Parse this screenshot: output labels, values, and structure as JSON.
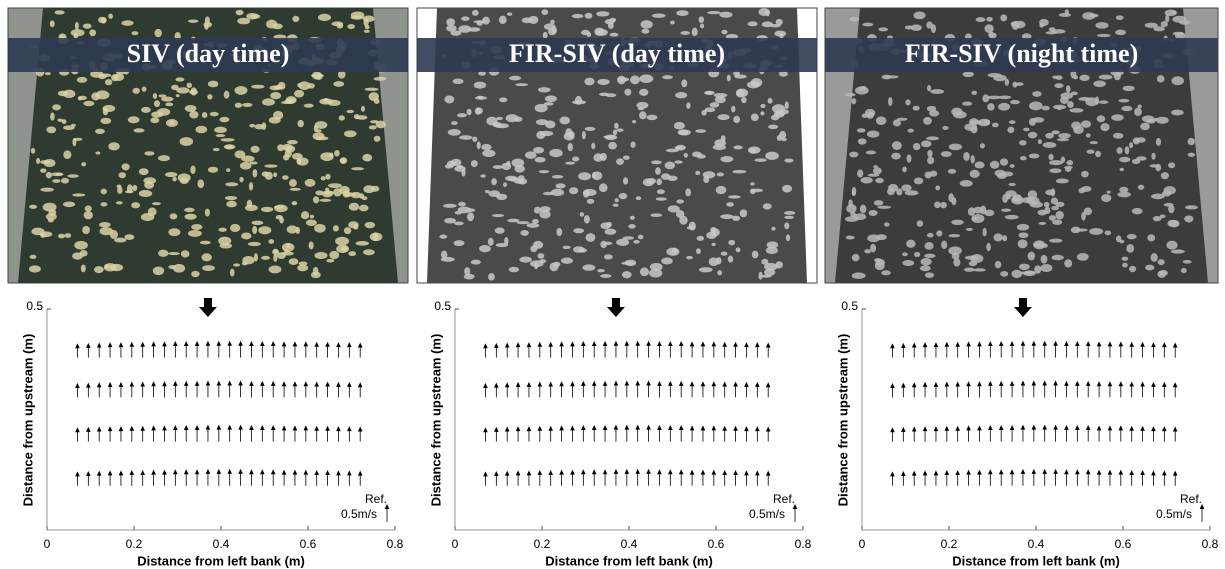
{
  "chart_data": [
    {
      "type": "quiver",
      "title": "SIV (day time)",
      "xlabel": "Distance from left bank (m)",
      "ylabel": "Distance from upstream (m)",
      "xlim": [
        0,
        0.8
      ],
      "ylim": [
        0,
        0.5
      ],
      "xticks": [
        0,
        0.2,
        0.4,
        0.6,
        0.8
      ],
      "yticks": [
        0.5
      ],
      "x": [
        0.07,
        0.095,
        0.12,
        0.145,
        0.17,
        0.195,
        0.22,
        0.245,
        0.27,
        0.295,
        0.32,
        0.345,
        0.37,
        0.395,
        0.42,
        0.445,
        0.47,
        0.495,
        0.52,
        0.545,
        0.57,
        0.595,
        0.62,
        0.645,
        0.67,
        0.695,
        0.72
      ],
      "rows": [
        {
          "y": 0.39,
          "values": [
            0.4,
            0.41,
            0.42,
            0.43,
            0.43,
            0.44,
            0.44,
            0.45,
            0.45,
            0.46,
            0.46,
            0.46,
            0.47,
            0.47,
            0.47,
            0.47,
            0.46,
            0.46,
            0.46,
            0.45,
            0.45,
            0.45,
            0.44,
            0.44,
            0.43,
            0.43,
            0.42
          ]
        },
        {
          "y": 0.3,
          "values": [
            0.4,
            0.41,
            0.42,
            0.43,
            0.43,
            0.44,
            0.44,
            0.45,
            0.45,
            0.46,
            0.46,
            0.46,
            0.47,
            0.47,
            0.47,
            0.47,
            0.46,
            0.46,
            0.46,
            0.45,
            0.45,
            0.45,
            0.44,
            0.44,
            0.43,
            0.43,
            0.42
          ]
        },
        {
          "y": 0.2,
          "values": [
            0.4,
            0.41,
            0.42,
            0.43,
            0.43,
            0.44,
            0.44,
            0.45,
            0.45,
            0.46,
            0.46,
            0.46,
            0.47,
            0.47,
            0.47,
            0.47,
            0.46,
            0.46,
            0.46,
            0.45,
            0.45,
            0.45,
            0.44,
            0.44,
            0.43,
            0.43,
            0.42
          ]
        },
        {
          "y": 0.1,
          "values": [
            0.4,
            0.41,
            0.42,
            0.43,
            0.43,
            0.44,
            0.44,
            0.45,
            0.45,
            0.46,
            0.46,
            0.46,
            0.47,
            0.47,
            0.47,
            0.47,
            0.46,
            0.46,
            0.46,
            0.45,
            0.45,
            0.45,
            0.44,
            0.44,
            0.43,
            0.43,
            0.42
          ]
        }
      ],
      "ref_label": "Ref.",
      "ref_value": 0.5,
      "ref_value_label": "0.5m/s"
    },
    {
      "type": "quiver",
      "title": "FIR-SIV (day time)",
      "xlabel": "Distance from left bank (m)",
      "ylabel": "Distance from upstream (m)",
      "xlim": [
        0,
        0.8
      ],
      "ylim": [
        0,
        0.5
      ],
      "xticks": [
        0,
        0.2,
        0.4,
        0.6,
        0.8
      ],
      "yticks": [
        0.5
      ],
      "x": [
        0.07,
        0.095,
        0.12,
        0.145,
        0.17,
        0.195,
        0.22,
        0.245,
        0.27,
        0.295,
        0.32,
        0.345,
        0.37,
        0.395,
        0.42,
        0.445,
        0.47,
        0.495,
        0.52,
        0.545,
        0.57,
        0.595,
        0.62,
        0.645,
        0.67,
        0.695,
        0.72
      ],
      "rows": [
        {
          "y": 0.39,
          "values": [
            0.4,
            0.41,
            0.42,
            0.43,
            0.43,
            0.44,
            0.44,
            0.45,
            0.45,
            0.46,
            0.46,
            0.46,
            0.47,
            0.47,
            0.47,
            0.47,
            0.46,
            0.46,
            0.46,
            0.45,
            0.45,
            0.45,
            0.44,
            0.44,
            0.43,
            0.43,
            0.42
          ]
        },
        {
          "y": 0.3,
          "values": [
            0.4,
            0.41,
            0.42,
            0.43,
            0.43,
            0.44,
            0.44,
            0.45,
            0.45,
            0.46,
            0.46,
            0.46,
            0.47,
            0.47,
            0.47,
            0.47,
            0.46,
            0.46,
            0.46,
            0.45,
            0.45,
            0.45,
            0.44,
            0.44,
            0.43,
            0.43,
            0.42
          ]
        },
        {
          "y": 0.2,
          "values": [
            0.4,
            0.41,
            0.42,
            0.43,
            0.43,
            0.44,
            0.44,
            0.45,
            0.45,
            0.46,
            0.46,
            0.46,
            0.47,
            0.47,
            0.47,
            0.47,
            0.46,
            0.46,
            0.46,
            0.45,
            0.45,
            0.45,
            0.44,
            0.44,
            0.43,
            0.43,
            0.42
          ]
        },
        {
          "y": 0.1,
          "values": [
            0.4,
            0.41,
            0.42,
            0.43,
            0.43,
            0.44,
            0.44,
            0.45,
            0.45,
            0.46,
            0.46,
            0.46,
            0.47,
            0.47,
            0.47,
            0.47,
            0.46,
            0.46,
            0.46,
            0.45,
            0.45,
            0.45,
            0.44,
            0.44,
            0.43,
            0.43,
            0.42
          ]
        }
      ],
      "ref_label": "Ref.",
      "ref_value": 0.5,
      "ref_value_label": "0.5m/s"
    },
    {
      "type": "quiver",
      "title": "FIR-SIV (night time)",
      "xlabel": "Distance from left bank (m)",
      "ylabel": "Distance from upstream (m)",
      "xlim": [
        0,
        0.8
      ],
      "ylim": [
        0,
        0.5
      ],
      "xticks": [
        0,
        0.2,
        0.4,
        0.6,
        0.8
      ],
      "yticks": [
        0.5
      ],
      "x": [
        0.07,
        0.095,
        0.12,
        0.145,
        0.17,
        0.195,
        0.22,
        0.245,
        0.27,
        0.295,
        0.32,
        0.345,
        0.37,
        0.395,
        0.42,
        0.445,
        0.47,
        0.495,
        0.52,
        0.545,
        0.57,
        0.595,
        0.62,
        0.645,
        0.67,
        0.695,
        0.72
      ],
      "rows": [
        {
          "y": 0.39,
          "values": [
            0.4,
            0.41,
            0.42,
            0.43,
            0.43,
            0.44,
            0.44,
            0.45,
            0.45,
            0.46,
            0.46,
            0.46,
            0.47,
            0.47,
            0.47,
            0.47,
            0.46,
            0.46,
            0.46,
            0.45,
            0.45,
            0.45,
            0.44,
            0.44,
            0.43,
            0.43,
            0.42
          ]
        },
        {
          "y": 0.3,
          "values": [
            0.4,
            0.41,
            0.42,
            0.43,
            0.43,
            0.44,
            0.44,
            0.45,
            0.45,
            0.46,
            0.46,
            0.46,
            0.47,
            0.47,
            0.47,
            0.47,
            0.46,
            0.46,
            0.46,
            0.45,
            0.45,
            0.45,
            0.44,
            0.44,
            0.43,
            0.43,
            0.42
          ]
        },
        {
          "y": 0.2,
          "values": [
            0.4,
            0.41,
            0.42,
            0.43,
            0.43,
            0.44,
            0.44,
            0.45,
            0.45,
            0.46,
            0.46,
            0.46,
            0.47,
            0.47,
            0.47,
            0.47,
            0.46,
            0.46,
            0.46,
            0.45,
            0.45,
            0.45,
            0.44,
            0.44,
            0.43,
            0.43,
            0.42
          ]
        },
        {
          "y": 0.1,
          "values": [
            0.4,
            0.41,
            0.42,
            0.43,
            0.43,
            0.44,
            0.44,
            0.45,
            0.45,
            0.46,
            0.46,
            0.46,
            0.47,
            0.47,
            0.47,
            0.47,
            0.46,
            0.46,
            0.46,
            0.45,
            0.45,
            0.45,
            0.44,
            0.44,
            0.43,
            0.43,
            0.42
          ]
        }
      ],
      "ref_label": "Ref.",
      "ref_value": 0.5,
      "ref_value_label": "0.5m/s"
    }
  ]
}
